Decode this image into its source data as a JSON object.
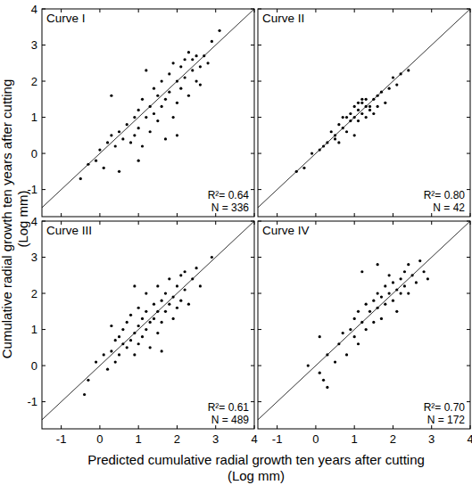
{
  "figure": {
    "xlabel": [
      "Predicted cumulative radial growth ten years after cutting",
      "(Log mm)"
    ],
    "ylabel": [
      "Cumulative radial growth ten years after cutting",
      "(Log mm)"
    ]
  },
  "chart_data": [
    {
      "type": "scatter",
      "title": "Curve I",
      "annotations": [
        "R²= 0.64",
        "N = 336"
      ],
      "color": "#000000",
      "marker": "circle",
      "xlim": [
        -1.5,
        4
      ],
      "ylim": [
        -1.75,
        4
      ],
      "xticks": [
        -1,
        0,
        1,
        2,
        3,
        4
      ],
      "yticks": [
        -1,
        0,
        1,
        2,
        3,
        4
      ],
      "tick_labels": "y",
      "x": [
        -0.5,
        -0.3,
        -0.1,
        0,
        0.1,
        0.2,
        0.3,
        0.4,
        0.5,
        0.5,
        0.6,
        0.7,
        0.8,
        0.9,
        0.9,
        1.0,
        1.0,
        1.1,
        1.1,
        1.2,
        1.3,
        1.3,
        1.4,
        1.4,
        1.5,
        1.5,
        1.6,
        1.6,
        1.7,
        1.7,
        1.8,
        1.8,
        1.9,
        1.9,
        2.0,
        2.0,
        2.1,
        2.1,
        2.2,
        2.2,
        2.3,
        2.3,
        2.4,
        2.4,
        2.5,
        2.5,
        2.6,
        2.6,
        2.7,
        2.8,
        2.9,
        3.1,
        0.3,
        1.2,
        2.0,
        1.0
      ],
      "values": [
        -0.7,
        -0.3,
        -0.2,
        0.1,
        -0.4,
        0.3,
        0.5,
        0.2,
        0.6,
        -0.5,
        0.4,
        0.8,
        0.3,
        1.0,
        0.5,
        1.2,
        0.7,
        0.2,
        1.5,
        1.0,
        1.3,
        0.6,
        1.8,
        1.1,
        1.6,
        0.9,
        2.0,
        1.3,
        1.5,
        0.4,
        2.2,
        1.7,
        1.0,
        2.5,
        2.0,
        1.4,
        2.4,
        1.8,
        2.6,
        2.1,
        1.6,
        2.8,
        2.3,
        2.6,
        2.0,
        2.7,
        2.4,
        1.9,
        2.7,
        2.5,
        3.1,
        3.4,
        1.6,
        2.3,
        0.5,
        -0.2
      ]
    },
    {
      "type": "scatter",
      "title": "Curve II",
      "annotations": [
        "R²= 0.80",
        "N = 42"
      ],
      "color": "#000000",
      "marker": "circle",
      "xlim": [
        -1.5,
        4
      ],
      "ylim": [
        -1.75,
        4
      ],
      "xticks": [
        -1,
        0,
        1,
        2,
        3,
        4
      ],
      "yticks": [
        -1,
        0,
        1,
        2,
        3,
        4
      ],
      "tick_labels": false,
      "x": [
        -0.5,
        -0.3,
        0.1,
        0.2,
        0.3,
        0.4,
        0.5,
        0.5,
        0.6,
        0.6,
        0.7,
        0.7,
        0.8,
        0.8,
        0.9,
        0.9,
        1.0,
        1.0,
        1.0,
        1.1,
        1.1,
        1.1,
        1.2,
        1.2,
        1.2,
        1.3,
        1.3,
        1.3,
        1.4,
        1.4,
        1.5,
        1.5,
        1.6,
        1.6,
        1.7,
        1.8,
        1.9,
        2.0,
        2.1,
        2.2,
        2.4,
        -0.1
      ],
      "values": [
        -0.5,
        -0.4,
        0.1,
        0.2,
        0.3,
        0.6,
        0.4,
        0.5,
        0.8,
        0.3,
        0.7,
        1.0,
        1.0,
        0.6,
        1.1,
        0.9,
        1.3,
        1.0,
        0.5,
        1.4,
        1.2,
        0.9,
        1.5,
        1.4,
        1.1,
        1.5,
        1.3,
        1.0,
        1.3,
        1.2,
        1.5,
        1.1,
        1.6,
        1.3,
        1.7,
        1.4,
        1.8,
        2.1,
        1.9,
        2.2,
        2.3,
        0.0
      ]
    },
    {
      "type": "scatter",
      "title": "Curve III",
      "annotations": [
        "R²= 0.61",
        "N = 489"
      ],
      "color": "#000000",
      "marker": "circle",
      "xlim": [
        -1.5,
        4
      ],
      "ylim": [
        -1.75,
        4
      ],
      "xticks": [
        -1,
        0,
        1,
        2,
        3,
        4
      ],
      "yticks": [
        -1,
        0,
        1,
        2,
        3,
        4
      ],
      "tick_labels": true,
      "x": [
        -0.4,
        -0.3,
        -0.1,
        0.1,
        0.2,
        0.3,
        0.4,
        0.4,
        0.5,
        0.5,
        0.6,
        0.6,
        0.7,
        0.7,
        0.8,
        0.8,
        0.9,
        0.9,
        1.0,
        1.0,
        1.0,
        1.1,
        1.1,
        1.2,
        1.2,
        1.2,
        1.3,
        1.3,
        1.4,
        1.4,
        1.5,
        1.5,
        1.5,
        1.6,
        1.6,
        1.7,
        1.7,
        1.8,
        1.8,
        1.9,
        1.9,
        2.0,
        2.0,
        2.1,
        2.1,
        2.2,
        2.2,
        2.3,
        2.4,
        2.5,
        2.6,
        2.9,
        0.9,
        1.6,
        0.3
      ],
      "values": [
        -0.8,
        -0.4,
        0.1,
        0.3,
        -0.1,
        0.4,
        0.7,
        0.1,
        0.8,
        0.3,
        0.6,
        1.0,
        0.5,
        1.2,
        0.7,
        1.4,
        0.9,
        0.3,
        1.1,
        1.6,
        0.6,
        1.3,
        0.8,
        1.5,
        1.0,
        2.0,
        1.2,
        0.5,
        1.7,
        1.3,
        1.5,
        2.2,
        0.9,
        1.8,
        1.2,
        2.0,
        1.5,
        1.7,
        2.4,
        1.9,
        1.3,
        2.2,
        1.6,
        2.5,
        1.8,
        2.1,
        2.6,
        1.7,
        2.4,
        2.7,
        2.2,
        3.0,
        2.2,
        0.4,
        1.1
      ]
    },
    {
      "type": "scatter",
      "title": "Curve IV",
      "annotations": [
        "R²= 0.70",
        "N = 172"
      ],
      "color": "#000000",
      "marker": "circle",
      "xlim": [
        -1.5,
        4
      ],
      "ylim": [
        -1.75,
        4
      ],
      "xticks": [
        -1,
        0,
        1,
        2,
        3,
        4
      ],
      "yticks": [
        -1,
        0,
        1,
        2,
        3,
        4
      ],
      "tick_labels": "x",
      "x": [
        -0.2,
        0.1,
        0.1,
        0.2,
        0.3,
        0.3,
        0.5,
        0.6,
        0.7,
        0.8,
        0.9,
        1.0,
        1.0,
        1.1,
        1.1,
        1.2,
        1.3,
        1.3,
        1.4,
        1.5,
        1.5,
        1.6,
        1.6,
        1.7,
        1.7,
        1.8,
        1.8,
        1.9,
        1.9,
        2.0,
        2.0,
        2.1,
        2.1,
        2.2,
        2.2,
        2.3,
        2.3,
        2.4,
        2.4,
        2.5,
        2.6,
        2.7,
        2.8,
        2.9,
        1.2,
        1.6
      ],
      "values": [
        0.0,
        0.8,
        -0.2,
        -0.4,
        -0.6,
        0.3,
        0.1,
        0.6,
        0.9,
        0.3,
        1.0,
        1.3,
        0.8,
        1.5,
        0.6,
        1.2,
        1.7,
        1.0,
        1.5,
        1.8,
        1.2,
        2.0,
        1.6,
        1.9,
        1.3,
        2.2,
        1.7,
        2.0,
        2.5,
        1.8,
        2.3,
        2.1,
        1.5,
        2.4,
        2.0,
        2.6,
        2.2,
        2.8,
        2.0,
        2.5,
        2.3,
        2.9,
        2.6,
        2.4,
        2.6,
        2.8
      ]
    }
  ]
}
